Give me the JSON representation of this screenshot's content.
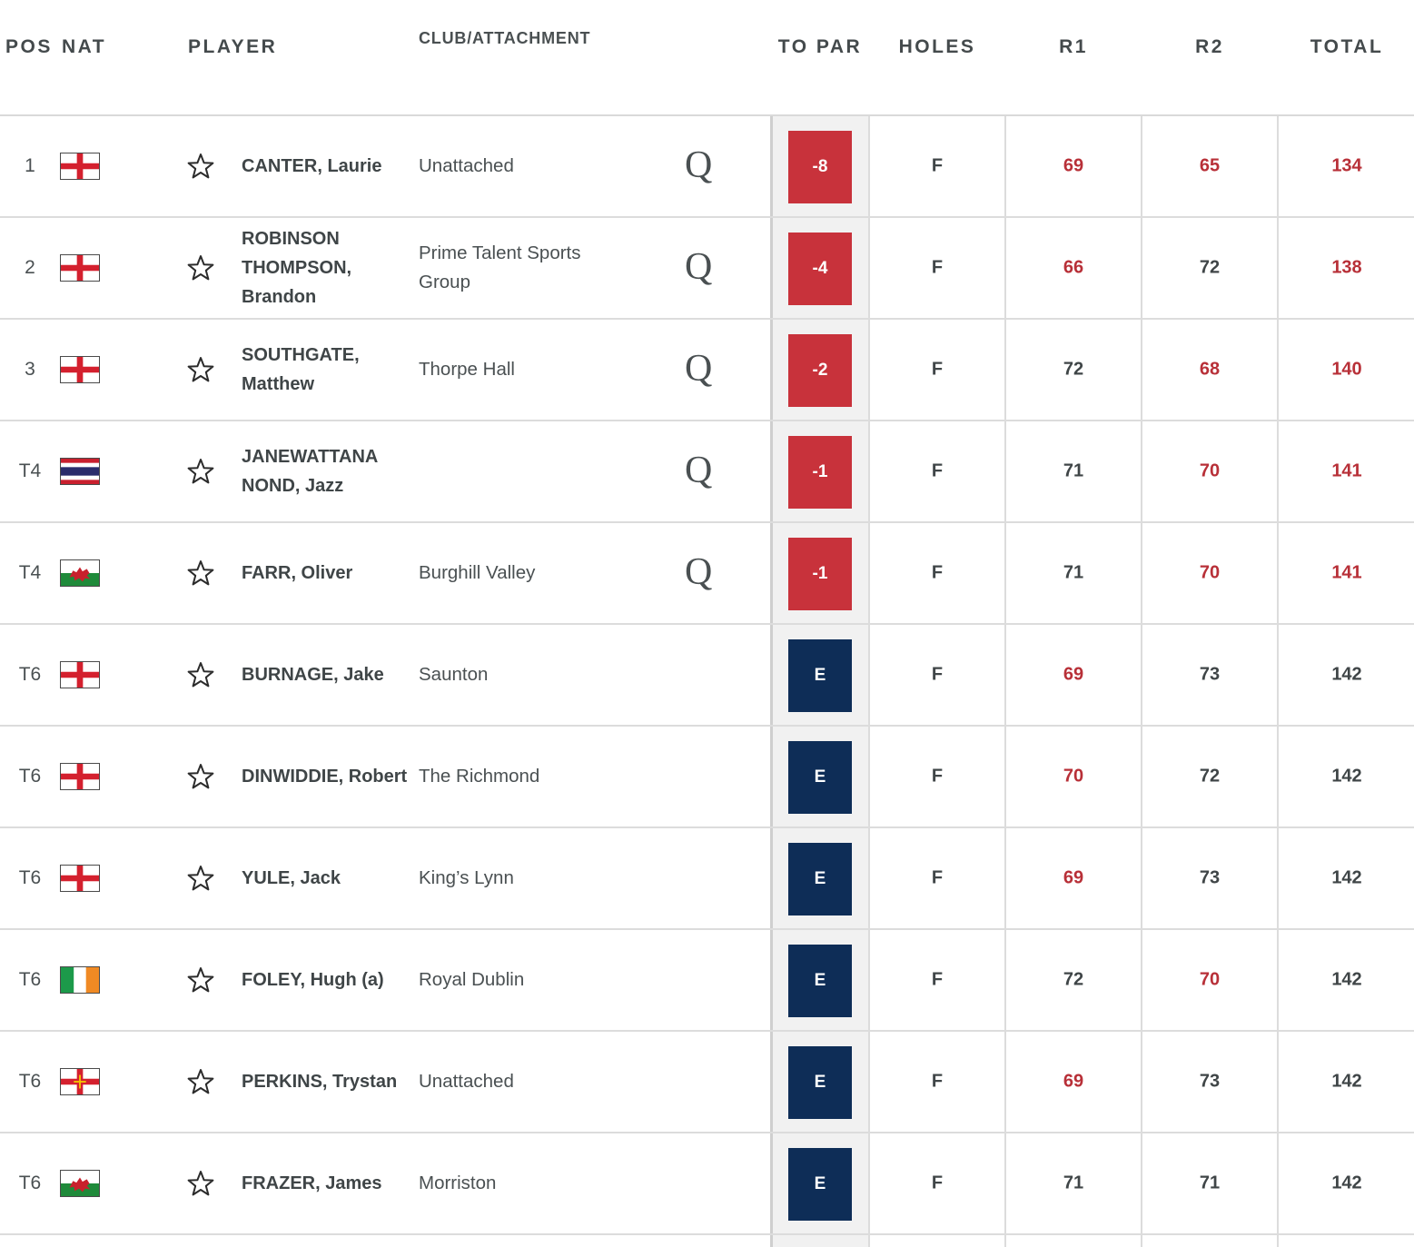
{
  "headers": {
    "pos": "POS",
    "nat": "NAT",
    "player": "PLAYER",
    "club": "CLUB/ATTACHMENT",
    "topar": "TO PAR",
    "holes": "HOLES",
    "r1": "R1",
    "r2": "R2",
    "total": "TOTAL"
  },
  "colors": {
    "under_par_badge": "#c8323b",
    "even_par_badge": "#0e2d57",
    "under_par_score": "#b83038",
    "text": "#3f4547"
  },
  "rows": [
    {
      "pos": "1",
      "flag": "england",
      "player": "CANTER, Laurie",
      "club": "Unattached",
      "qualified": "Q",
      "to_par": "-8",
      "holes": "F",
      "r1": "69",
      "r2": "65",
      "total": "134",
      "r1_under": true,
      "r2_under": true,
      "total_under": true,
      "badge": "under"
    },
    {
      "pos": "2",
      "flag": "england",
      "player": "ROBINSON THOMPSON, Brandon",
      "club": "Prime Talent Sports Group",
      "qualified": "Q",
      "to_par": "-4",
      "holes": "F",
      "r1": "66",
      "r2": "72",
      "total": "138",
      "r1_under": true,
      "r2_under": false,
      "total_under": true,
      "badge": "under"
    },
    {
      "pos": "3",
      "flag": "england",
      "player": "SOUTHGATE, Matthew",
      "club": "Thorpe Hall",
      "qualified": "Q",
      "to_par": "-2",
      "holes": "F",
      "r1": "72",
      "r2": "68",
      "total": "140",
      "r1_under": false,
      "r2_under": true,
      "total_under": true,
      "badge": "under"
    },
    {
      "pos": "T4",
      "flag": "thailand",
      "player": "JANEWATTANA NOND, Jazz",
      "club": "",
      "qualified": "Q",
      "to_par": "-1",
      "holes": "F",
      "r1": "71",
      "r2": "70",
      "total": "141",
      "r1_under": false,
      "r2_under": true,
      "total_under": true,
      "badge": "under"
    },
    {
      "pos": "T4",
      "flag": "wales",
      "player": "FARR, Oliver",
      "club": "Burghill Valley",
      "qualified": "Q",
      "to_par": "-1",
      "holes": "F",
      "r1": "71",
      "r2": "70",
      "total": "141",
      "r1_under": false,
      "r2_under": true,
      "total_under": true,
      "badge": "under"
    },
    {
      "pos": "T6",
      "flag": "england",
      "player": "BURNAGE, Jake",
      "club": "Saunton",
      "qualified": "",
      "to_par": "E",
      "holes": "F",
      "r1": "69",
      "r2": "73",
      "total": "142",
      "r1_under": true,
      "r2_under": false,
      "total_under": false,
      "badge": "even"
    },
    {
      "pos": "T6",
      "flag": "england",
      "player": "DINWIDDIE, Robert",
      "club": "The Richmond",
      "qualified": "",
      "to_par": "E",
      "holes": "F",
      "r1": "70",
      "r2": "72",
      "total": "142",
      "r1_under": true,
      "r2_under": false,
      "total_under": false,
      "badge": "even"
    },
    {
      "pos": "T6",
      "flag": "england",
      "player": "YULE, Jack",
      "club": "King’s Lynn",
      "qualified": "",
      "to_par": "E",
      "holes": "F",
      "r1": "69",
      "r2": "73",
      "total": "142",
      "r1_under": true,
      "r2_under": false,
      "total_under": false,
      "badge": "even"
    },
    {
      "pos": "T6",
      "flag": "ireland",
      "player": "FOLEY, Hugh (a)",
      "club": "Royal Dublin",
      "qualified": "",
      "to_par": "E",
      "holes": "F",
      "r1": "72",
      "r2": "70",
      "total": "142",
      "r1_under": false,
      "r2_under": true,
      "total_under": false,
      "badge": "even"
    },
    {
      "pos": "T6",
      "flag": "guernsey",
      "player": "PERKINS, Trystan",
      "club": "Unattached",
      "qualified": "",
      "to_par": "E",
      "holes": "F",
      "r1": "69",
      "r2": "73",
      "total": "142",
      "r1_under": true,
      "r2_under": false,
      "total_under": false,
      "badge": "even"
    },
    {
      "pos": "T6",
      "flag": "wales",
      "player": "FRAZER, James",
      "club": "Morriston",
      "qualified": "",
      "to_par": "E",
      "holes": "F",
      "r1": "71",
      "r2": "71",
      "total": "142",
      "r1_under": false,
      "r2_under": false,
      "total_under": false,
      "badge": "even"
    }
  ]
}
